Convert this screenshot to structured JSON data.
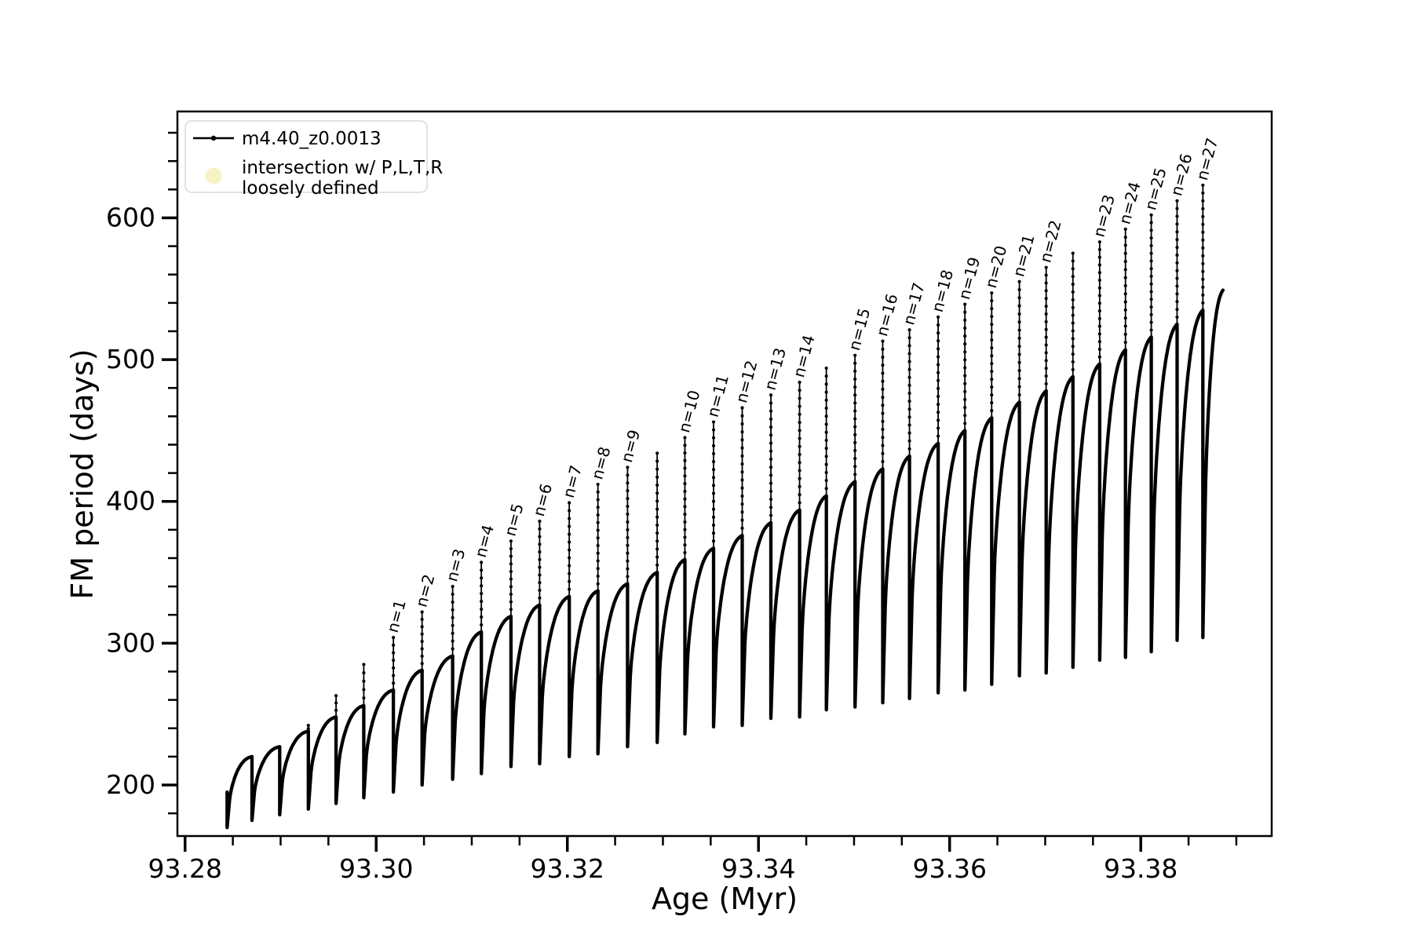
{
  "chart_data": {
    "type": "line",
    "title": "",
    "xlabel": "Age (Myr)",
    "ylabel": "FM period (days)",
    "xlim": [
      93.2792,
      93.3937
    ],
    "ylim": [
      164,
      675
    ],
    "xticks": [
      93.28,
      93.3,
      93.32,
      93.34,
      93.36,
      93.38
    ],
    "xtick_labels": [
      "93.28",
      "93.30",
      "93.32",
      "93.34",
      "93.36",
      "93.38"
    ],
    "yticks": [
      200,
      300,
      400,
      500,
      600
    ],
    "ytick_labels": [
      "200",
      "300",
      "400",
      "500",
      "600"
    ],
    "x_minor_step": 0.005,
    "y_minor_step": 20,
    "grid": false,
    "legend_position": "upper-left",
    "line_color": "#000000",
    "intersection_marker_color": "#f8f3c4",
    "series": [
      {
        "name": "m4.40_z0.0013",
        "style": "black line with point markers"
      },
      {
        "name": "intersection w/ P,L,T,R loosely defined",
        "style": "pale yellow circle marker"
      }
    ],
    "start_value": 195,
    "end_age": 93.3886,
    "end_peak": 549,
    "pulses": [
      {
        "age": 93.2844,
        "min": 170,
        "peak": 220,
        "spike": null,
        "label": null
      },
      {
        "age": 93.287,
        "min": 175,
        "peak": 227,
        "spike": null,
        "label": null
      },
      {
        "age": 93.2899,
        "min": 179,
        "peak": 238,
        "spike": null,
        "label": null
      },
      {
        "age": 93.2929,
        "min": 183,
        "peak": 248,
        "spike": 242,
        "label": null
      },
      {
        "age": 93.2958,
        "min": 187,
        "peak": 256,
        "spike": 263,
        "label": null
      },
      {
        "age": 93.2987,
        "min": 191,
        "peak": 267,
        "spike": 285,
        "label": null
      },
      {
        "age": 93.3018,
        "min": 195,
        "peak": 281,
        "spike": 304,
        "label": "n=1"
      },
      {
        "age": 93.3048,
        "min": 200,
        "peak": 291,
        "spike": 322,
        "label": "n=2"
      },
      {
        "age": 93.308,
        "min": 204,
        "peak": 308,
        "spike": 340,
        "label": "n=3"
      },
      {
        "age": 93.311,
        "min": 208,
        "peak": 319,
        "spike": 357,
        "label": "n=4"
      },
      {
        "age": 93.3141,
        "min": 213,
        "peak": 327,
        "spike": 372,
        "label": "n=5"
      },
      {
        "age": 93.3171,
        "min": 215,
        "peak": 333,
        "spike": 386,
        "label": "n=6"
      },
      {
        "age": 93.3202,
        "min": 220,
        "peak": 337,
        "spike": 399,
        "label": "n=7"
      },
      {
        "age": 93.3232,
        "min": 222,
        "peak": 342,
        "spike": 412,
        "label": "n=8"
      },
      {
        "age": 93.3263,
        "min": 227,
        "peak": 350,
        "spike": 424,
        "label": "n=9"
      },
      {
        "age": 93.3294,
        "min": 230,
        "peak": 359,
        "spike": 434,
        "label": null
      },
      {
        "age": 93.3323,
        "min": 236,
        "peak": 367,
        "spike": 445,
        "label": "n=10"
      },
      {
        "age": 93.3353,
        "min": 241,
        "peak": 376,
        "spike": 456,
        "label": "n=11"
      },
      {
        "age": 93.3383,
        "min": 242,
        "peak": 385,
        "spike": 466,
        "label": "n=12"
      },
      {
        "age": 93.3413,
        "min": 247,
        "peak": 394,
        "spike": 475,
        "label": "n=13"
      },
      {
        "age": 93.3443,
        "min": 248,
        "peak": 404,
        "spike": 484,
        "label": "n=14"
      },
      {
        "age": 93.3471,
        "min": 253,
        "peak": 414,
        "spike": 494,
        "label": null
      },
      {
        "age": 93.3501,
        "min": 255,
        "peak": 423,
        "spike": 503,
        "label": "n=15"
      },
      {
        "age": 93.353,
        "min": 258,
        "peak": 432,
        "spike": 513,
        "label": "n=16"
      },
      {
        "age": 93.3558,
        "min": 261,
        "peak": 441,
        "spike": 521,
        "label": "n=17"
      },
      {
        "age": 93.3588,
        "min": 265,
        "peak": 450,
        "spike": 530,
        "label": "n=18"
      },
      {
        "age": 93.3616,
        "min": 267,
        "peak": 459,
        "spike": 539,
        "label": "n=19"
      },
      {
        "age": 93.3644,
        "min": 271,
        "peak": 470,
        "spike": 547,
        "label": "n=20"
      },
      {
        "age": 93.3673,
        "min": 277,
        "peak": 478,
        "spike": 555,
        "label": "n=21"
      },
      {
        "age": 93.3701,
        "min": 279,
        "peak": 488,
        "spike": 565,
        "label": "n=22"
      },
      {
        "age": 93.3729,
        "min": 283,
        "peak": 497,
        "spike": 575,
        "label": null
      },
      {
        "age": 93.3757,
        "min": 288,
        "peak": 507,
        "spike": 583,
        "label": "n=23"
      },
      {
        "age": 93.3784,
        "min": 290,
        "peak": 516,
        "spike": 592,
        "label": "n=24"
      },
      {
        "age": 93.3811,
        "min": 294,
        "peak": 525,
        "spike": 602,
        "label": "n=25"
      },
      {
        "age": 93.3838,
        "min": 302,
        "peak": 535,
        "spike": 612,
        "label": "n=26"
      },
      {
        "age": 93.3865,
        "min": 304,
        "peak": 549,
        "spike": 623,
        "label": "n=27"
      }
    ]
  },
  "legend": {
    "series1_label": "m4.40_z0.0013",
    "series2_label_line1": "intersection w/ P,L,T,R",
    "series2_label_line2": "loosely defined"
  }
}
